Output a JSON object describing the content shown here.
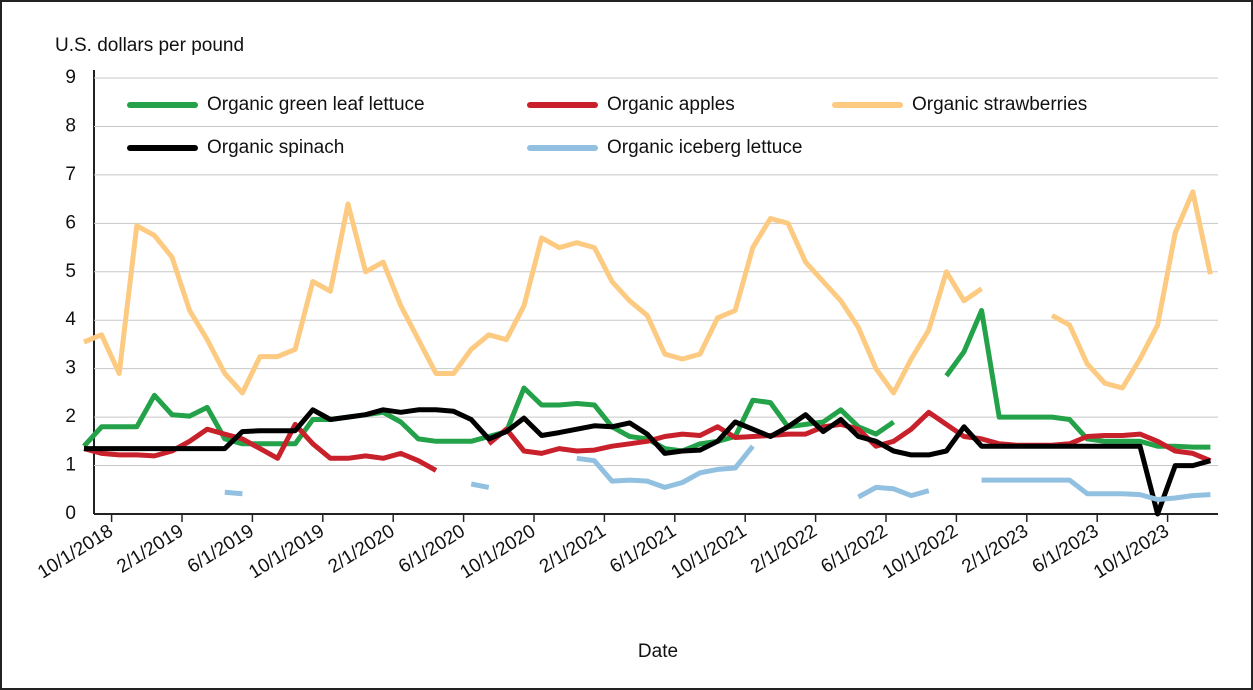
{
  "chart_data": {
    "type": "line",
    "y_label": "U.S. dollars per pound",
    "x_label": "Date",
    "categories": [
      null,
      "10/1/2018",
      null,
      null,
      null,
      "2/1/2019",
      null,
      null,
      null,
      "6/1/2019",
      null,
      null,
      null,
      "10/1/2019",
      null,
      null,
      null,
      "2/1/2020",
      null,
      null,
      null,
      "6/1/2020",
      null,
      null,
      null,
      "10/1/2020",
      null,
      null,
      null,
      "2/1/2021",
      null,
      null,
      null,
      "6/1/2021",
      null,
      null,
      null,
      "10/1/2021",
      null,
      null,
      null,
      "2/1/2022",
      null,
      null,
      null,
      "6/1/2022",
      null,
      null,
      null,
      "10/1/2022",
      null,
      null,
      null,
      "2/1/2023",
      null,
      null,
      null,
      "6/1/2023",
      null,
      null,
      null,
      "10/1/2023",
      null,
      null,
      null
    ],
    "ylim": [
      0,
      9
    ],
    "yticks": [
      0,
      1,
      2,
      3,
      4,
      5,
      6,
      7,
      8,
      9
    ],
    "grid": true,
    "series": [
      {
        "name": "Organic green leaf lettuce",
        "color": "#23a24a",
        "values": [
          1.4,
          1.8,
          1.8,
          1.8,
          2.45,
          2.05,
          2.02,
          2.2,
          1.55,
          1.45,
          1.45,
          1.45,
          1.45,
          1.95,
          1.95,
          2.0,
          2.05,
          2.1,
          1.9,
          1.55,
          1.5,
          1.5,
          1.5,
          1.6,
          1.7,
          2.6,
          2.25,
          2.25,
          2.28,
          2.25,
          1.8,
          1.6,
          1.55,
          1.35,
          1.3,
          1.45,
          1.5,
          1.6,
          2.35,
          2.3,
          1.8,
          1.85,
          1.9,
          2.15,
          1.8,
          1.65,
          1.9,
          null,
          null,
          2.85,
          3.35,
          4.2,
          2.0,
          2.0,
          2.0,
          2.0,
          1.95,
          1.55,
          1.5,
          1.5,
          1.5,
          1.4,
          1.4,
          1.38,
          1.38
        ]
      },
      {
        "name": "Organic apples",
        "color": "#c8212b",
        "values": [
          1.35,
          1.25,
          1.22,
          1.22,
          1.2,
          1.3,
          1.5,
          1.75,
          1.65,
          1.55,
          1.35,
          1.15,
          1.85,
          1.45,
          1.15,
          1.15,
          1.2,
          1.15,
          1.25,
          1.1,
          0.9,
          null,
          null,
          1.45,
          1.75,
          1.3,
          1.25,
          1.35,
          1.3,
          1.32,
          1.4,
          1.45,
          1.5,
          1.6,
          1.65,
          1.62,
          1.8,
          1.58,
          1.6,
          1.62,
          1.65,
          1.65,
          1.8,
          1.85,
          1.75,
          1.4,
          1.5,
          1.75,
          2.1,
          1.85,
          1.6,
          1.55,
          1.45,
          1.42,
          1.42,
          1.42,
          1.45,
          1.6,
          1.62,
          1.62,
          1.65,
          1.5,
          1.3,
          1.25,
          1.1
        ]
      },
      {
        "name": "Organic strawberries",
        "color": "#fdca82",
        "values": [
          3.55,
          3.7,
          2.9,
          5.95,
          5.75,
          5.3,
          4.2,
          3.6,
          2.9,
          2.5,
          3.25,
          3.25,
          3.4,
          4.8,
          4.6,
          6.4,
          5.0,
          5.2,
          4.3,
          3.6,
          2.9,
          2.9,
          3.4,
          3.7,
          3.6,
          4.3,
          5.7,
          5.5,
          5.6,
          5.5,
          4.8,
          4.4,
          4.1,
          3.3,
          3.2,
          3.3,
          4.05,
          4.2,
          5.5,
          6.1,
          6.0,
          5.2,
          4.8,
          4.4,
          3.85,
          3.0,
          2.5,
          3.2,
          3.8,
          5.0,
          4.4,
          4.65,
          null,
          null,
          null,
          4.1,
          3.9,
          3.1,
          2.7,
          2.6,
          3.2,
          3.9,
          5.8,
          6.65,
          4.95
        ]
      },
      {
        "name": "Organic spinach",
        "color": "#000000",
        "values": [
          1.35,
          1.35,
          1.35,
          1.35,
          1.35,
          1.35,
          1.35,
          1.35,
          1.35,
          1.7,
          1.72,
          1.72,
          1.72,
          2.15,
          1.95,
          2.0,
          2.05,
          2.15,
          2.1,
          2.15,
          2.15,
          2.12,
          1.95,
          1.55,
          1.7,
          1.98,
          1.62,
          1.68,
          1.75,
          1.82,
          1.8,
          1.88,
          1.65,
          1.25,
          1.3,
          1.32,
          1.5,
          1.9,
          1.75,
          1.6,
          1.8,
          2.05,
          1.7,
          1.95,
          1.6,
          1.5,
          1.3,
          1.22,
          1.22,
          1.3,
          1.8,
          1.4,
          1.4,
          1.4,
          1.4,
          1.4,
          1.4,
          1.4,
          1.4,
          1.4,
          1.4,
          0,
          1.0,
          1.0,
          1.1
        ]
      },
      {
        "name": "Organic iceberg lettuce",
        "color": "#92c0e0",
        "values": [
          null,
          null,
          null,
          null,
          null,
          null,
          null,
          null,
          0.45,
          0.42,
          null,
          null,
          null,
          null,
          null,
          null,
          null,
          null,
          null,
          null,
          null,
          null,
          0.62,
          0.55,
          null,
          null,
          null,
          null,
          1.15,
          1.1,
          0.68,
          0.7,
          0.68,
          0.55,
          0.65,
          0.85,
          0.92,
          0.95,
          1.4,
          null,
          null,
          null,
          null,
          null,
          0.35,
          0.55,
          0.52,
          0.38,
          0.48,
          null,
          null,
          0.7,
          0.7,
          0.7,
          0.7,
          0.7,
          0.7,
          0.42,
          0.42,
          0.42,
          0.4,
          0.3,
          0.33,
          0.38,
          0.4
        ]
      }
    ]
  }
}
